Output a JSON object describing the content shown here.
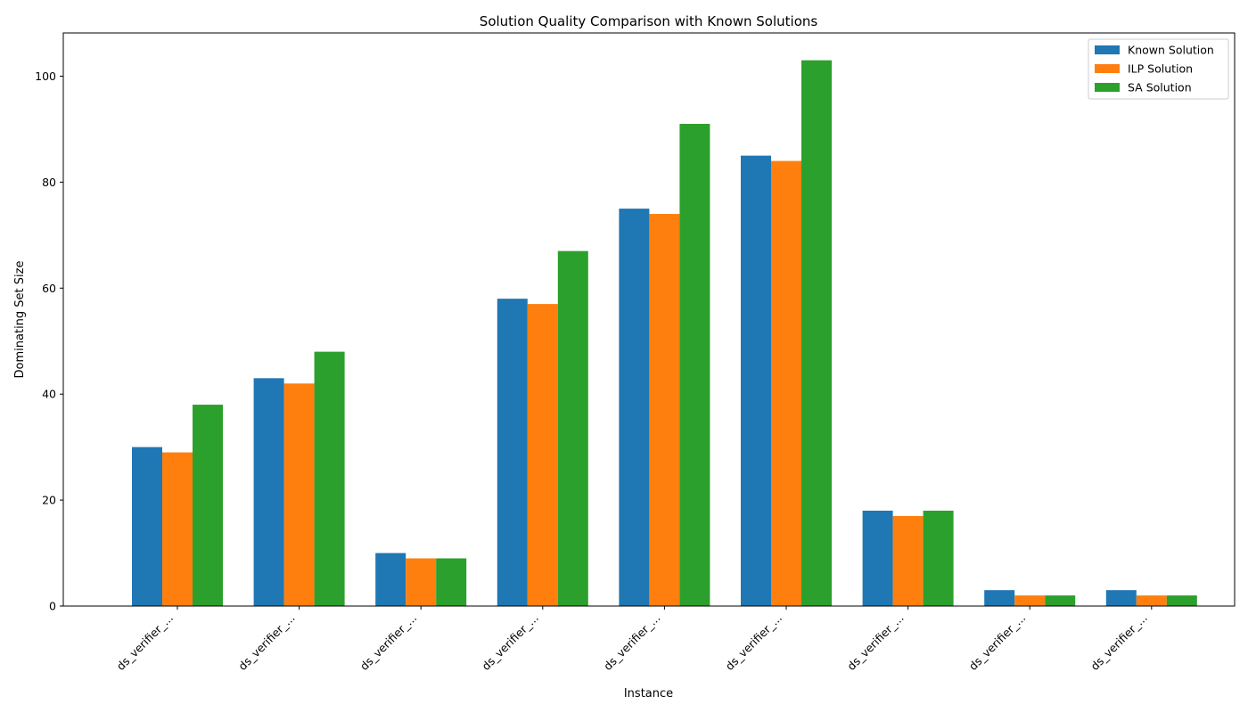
{
  "chart_data": {
    "type": "bar",
    "title": "Solution Quality Comparison with Known Solutions",
    "xlabel": "Instance",
    "ylabel": "Dominating Set Size",
    "categories": [
      "ds_verifier_...",
      "ds_verifier_...",
      "ds_verifier_...",
      "ds_verifier_...",
      "ds_verifier_...",
      "ds_verifier_...",
      "ds_verifier_...",
      "ds_verifier_...",
      "ds_verifier_..."
    ],
    "series": [
      {
        "name": "Known Solution",
        "color": "#1f77b4",
        "values": [
          30,
          43,
          10,
          58,
          75,
          85,
          18,
          3,
          3
        ]
      },
      {
        "name": "ILP Solution",
        "color": "#ff7f0e",
        "values": [
          29,
          42,
          9,
          57,
          74,
          84,
          17,
          2,
          2
        ]
      },
      {
        "name": "SA Solution",
        "color": "#2ca02c",
        "values": [
          38,
          48,
          9,
          67,
          91,
          103,
          18,
          2,
          2
        ]
      }
    ],
    "ylim": [
      0,
      108.15
    ],
    "yticks": [
      0,
      20,
      40,
      60,
      80,
      100
    ],
    "grid": false,
    "legend_position": "top-right"
  }
}
